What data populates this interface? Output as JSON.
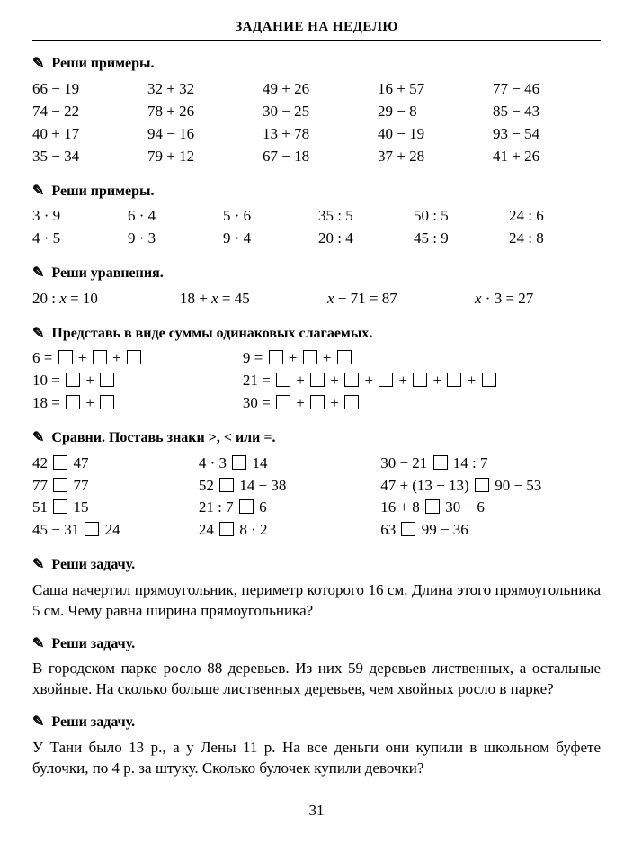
{
  "title": "ЗАДАНИЕ НА НЕДЕЛЮ",
  "pencil": "✎",
  "s1": {
    "head": "Реши примеры.",
    "rows": [
      [
        "66 − 19",
        "32 + 32",
        "49 + 26",
        "16 + 57",
        "77 − 46"
      ],
      [
        "74 − 22",
        "78 + 26",
        "30 − 25",
        "29 − 8",
        "85 − 43"
      ],
      [
        "40 + 17",
        "94 − 16",
        "13 + 78",
        "40 − 19",
        "93 − 54"
      ],
      [
        "35 − 34",
        "79 + 12",
        "67 − 18",
        "37 + 28",
        "41 + 26"
      ]
    ]
  },
  "s2": {
    "head": "Реши примеры.",
    "rows": [
      [
        "3 · 9",
        "6 · 4",
        "5 · 6",
        "35 : 5",
        "50 : 5",
        "24 : 6"
      ],
      [
        "4 · 5",
        "9 · 3",
        "9 · 4",
        "20 : 4",
        "45 : 9",
        "24 : 8"
      ]
    ]
  },
  "s3": {
    "head": "Реши уравнения.",
    "items": [
      "20 : x = 10",
      "18 + x = 45",
      "x − 71 = 87",
      "x · 3 = 27"
    ]
  },
  "s4": {
    "head": "Представь в виде суммы одинаковых слагаемых.",
    "left": [
      {
        "pre": "6 = ",
        "n": 3
      },
      {
        "pre": "10 = ",
        "n": 2
      },
      {
        "pre": "18 = ",
        "n": 2
      }
    ],
    "right": [
      {
        "pre": "9 = ",
        "n": 3
      },
      {
        "pre": "21 = ",
        "n": 7
      },
      {
        "pre": "30 = ",
        "n": 3
      }
    ]
  },
  "s5": {
    "head": "Сравни. Поставь знаки >, < или =.",
    "col1": [
      {
        "l": "42",
        "r": "47"
      },
      {
        "l": "77",
        "r": "77"
      },
      {
        "l": "51",
        "r": "15"
      },
      {
        "l": "45 − 31",
        "r": "24"
      }
    ],
    "col2": [
      {
        "l": "4 · 3",
        "r": "14"
      },
      {
        "l": "52",
        "r": "14 + 38"
      },
      {
        "l": "21 : 7",
        "r": "6"
      },
      {
        "l": "24",
        "r": "8 · 2"
      }
    ],
    "col3": [
      {
        "l": "30 − 21",
        "r": "14 : 7"
      },
      {
        "l": "47 + (13 − 13)",
        "r": "90 − 53"
      },
      {
        "l": "16 + 8",
        "r": "30 − 6"
      },
      {
        "l": "63",
        "r": "99 − 36"
      }
    ]
  },
  "s6": {
    "head": "Реши задачу.",
    "text": "Саша начертил прямоугольник, периметр которого 16 см. Длина этого прямоугольника 5 см. Чему равна ширина прямоугольника?"
  },
  "s7": {
    "head": "Реши задачу.",
    "text": "В городском парке росло 88 деревьев. Из них 59 деревьев лиственных, а остальные хвойные. На сколько больше лиственных деревьев, чем хвойных росло в парке?"
  },
  "s8": {
    "head": "Реши задачу.",
    "text": "У Тани было 13 р., а у Лены 11 р. На все деньги они купили в школьном буфете булочки, по 4 р. за штуку. Сколько булочек купили девочки?"
  },
  "page": "31"
}
